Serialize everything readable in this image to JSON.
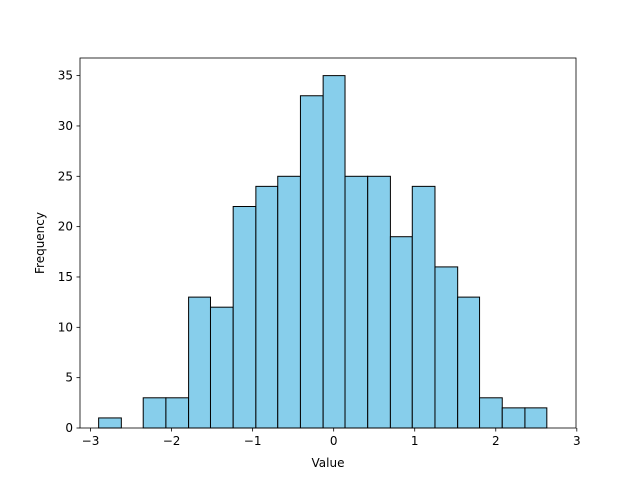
{
  "chart_data": {
    "type": "bar",
    "subtype": "histogram",
    "title": "",
    "xlabel": "Value",
    "ylabel": "Frequency",
    "bin_edges": [
      -2.9,
      -2.62,
      -2.35,
      -2.07,
      -1.79,
      -1.52,
      -1.24,
      -0.96,
      -0.69,
      -0.41,
      -0.13,
      0.14,
      0.42,
      0.7,
      0.97,
      1.25,
      1.53,
      1.8,
      2.08,
      2.36,
      2.63
    ],
    "bin_edges_note_removed": true,
    "counts": [
      1,
      0,
      3,
      3,
      13,
      12,
      22,
      24,
      25,
      33,
      35,
      25,
      25,
      19,
      24,
      16,
      13,
      3,
      2,
      2
    ],
    "xlim": [
      -3.13,
      2.99
    ],
    "ylim": [
      0,
      36.75
    ],
    "xticks": [
      -3,
      -2,
      -1,
      0,
      1,
      2,
      3
    ],
    "xtick_labels": [
      "−3",
      "−2",
      "−1",
      "0",
      "1",
      "2",
      "3"
    ],
    "yticks": [
      0,
      5,
      10,
      15,
      20,
      25,
      30,
      35
    ],
    "ytick_labels": [
      "0",
      "5",
      "10",
      "15",
      "20",
      "25",
      "30",
      "35"
    ],
    "bar_color": "#87ceeb",
    "edge_color": "#000000",
    "grid": false,
    "legend": "none"
  }
}
